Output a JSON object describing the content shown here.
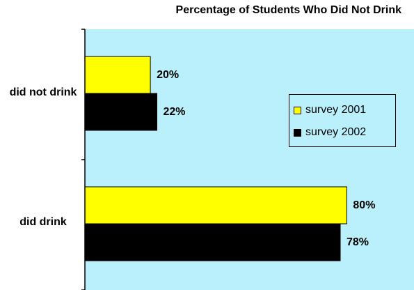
{
  "chart_data": {
    "type": "bar",
    "orientation": "horizontal",
    "title": "Percentage of Students Who Did Not Drink",
    "categories": [
      "did not drink",
      "did drink"
    ],
    "series": [
      {
        "name": "survey 2001",
        "values": [
          20,
          80
        ],
        "labels": [
          "20%",
          "80%"
        ],
        "color": "#ffff00"
      },
      {
        "name": "survey 2002",
        "values": [
          22,
          78
        ],
        "labels": [
          "22%",
          "78%"
        ],
        "color": "#000000"
      }
    ],
    "xlim": [
      0,
      100
    ],
    "grid": false,
    "legend_position": "right",
    "plot_background": "#b9f0fb"
  },
  "colors": {
    "plot_background": "#b9f0fb",
    "axis": "#000000"
  }
}
